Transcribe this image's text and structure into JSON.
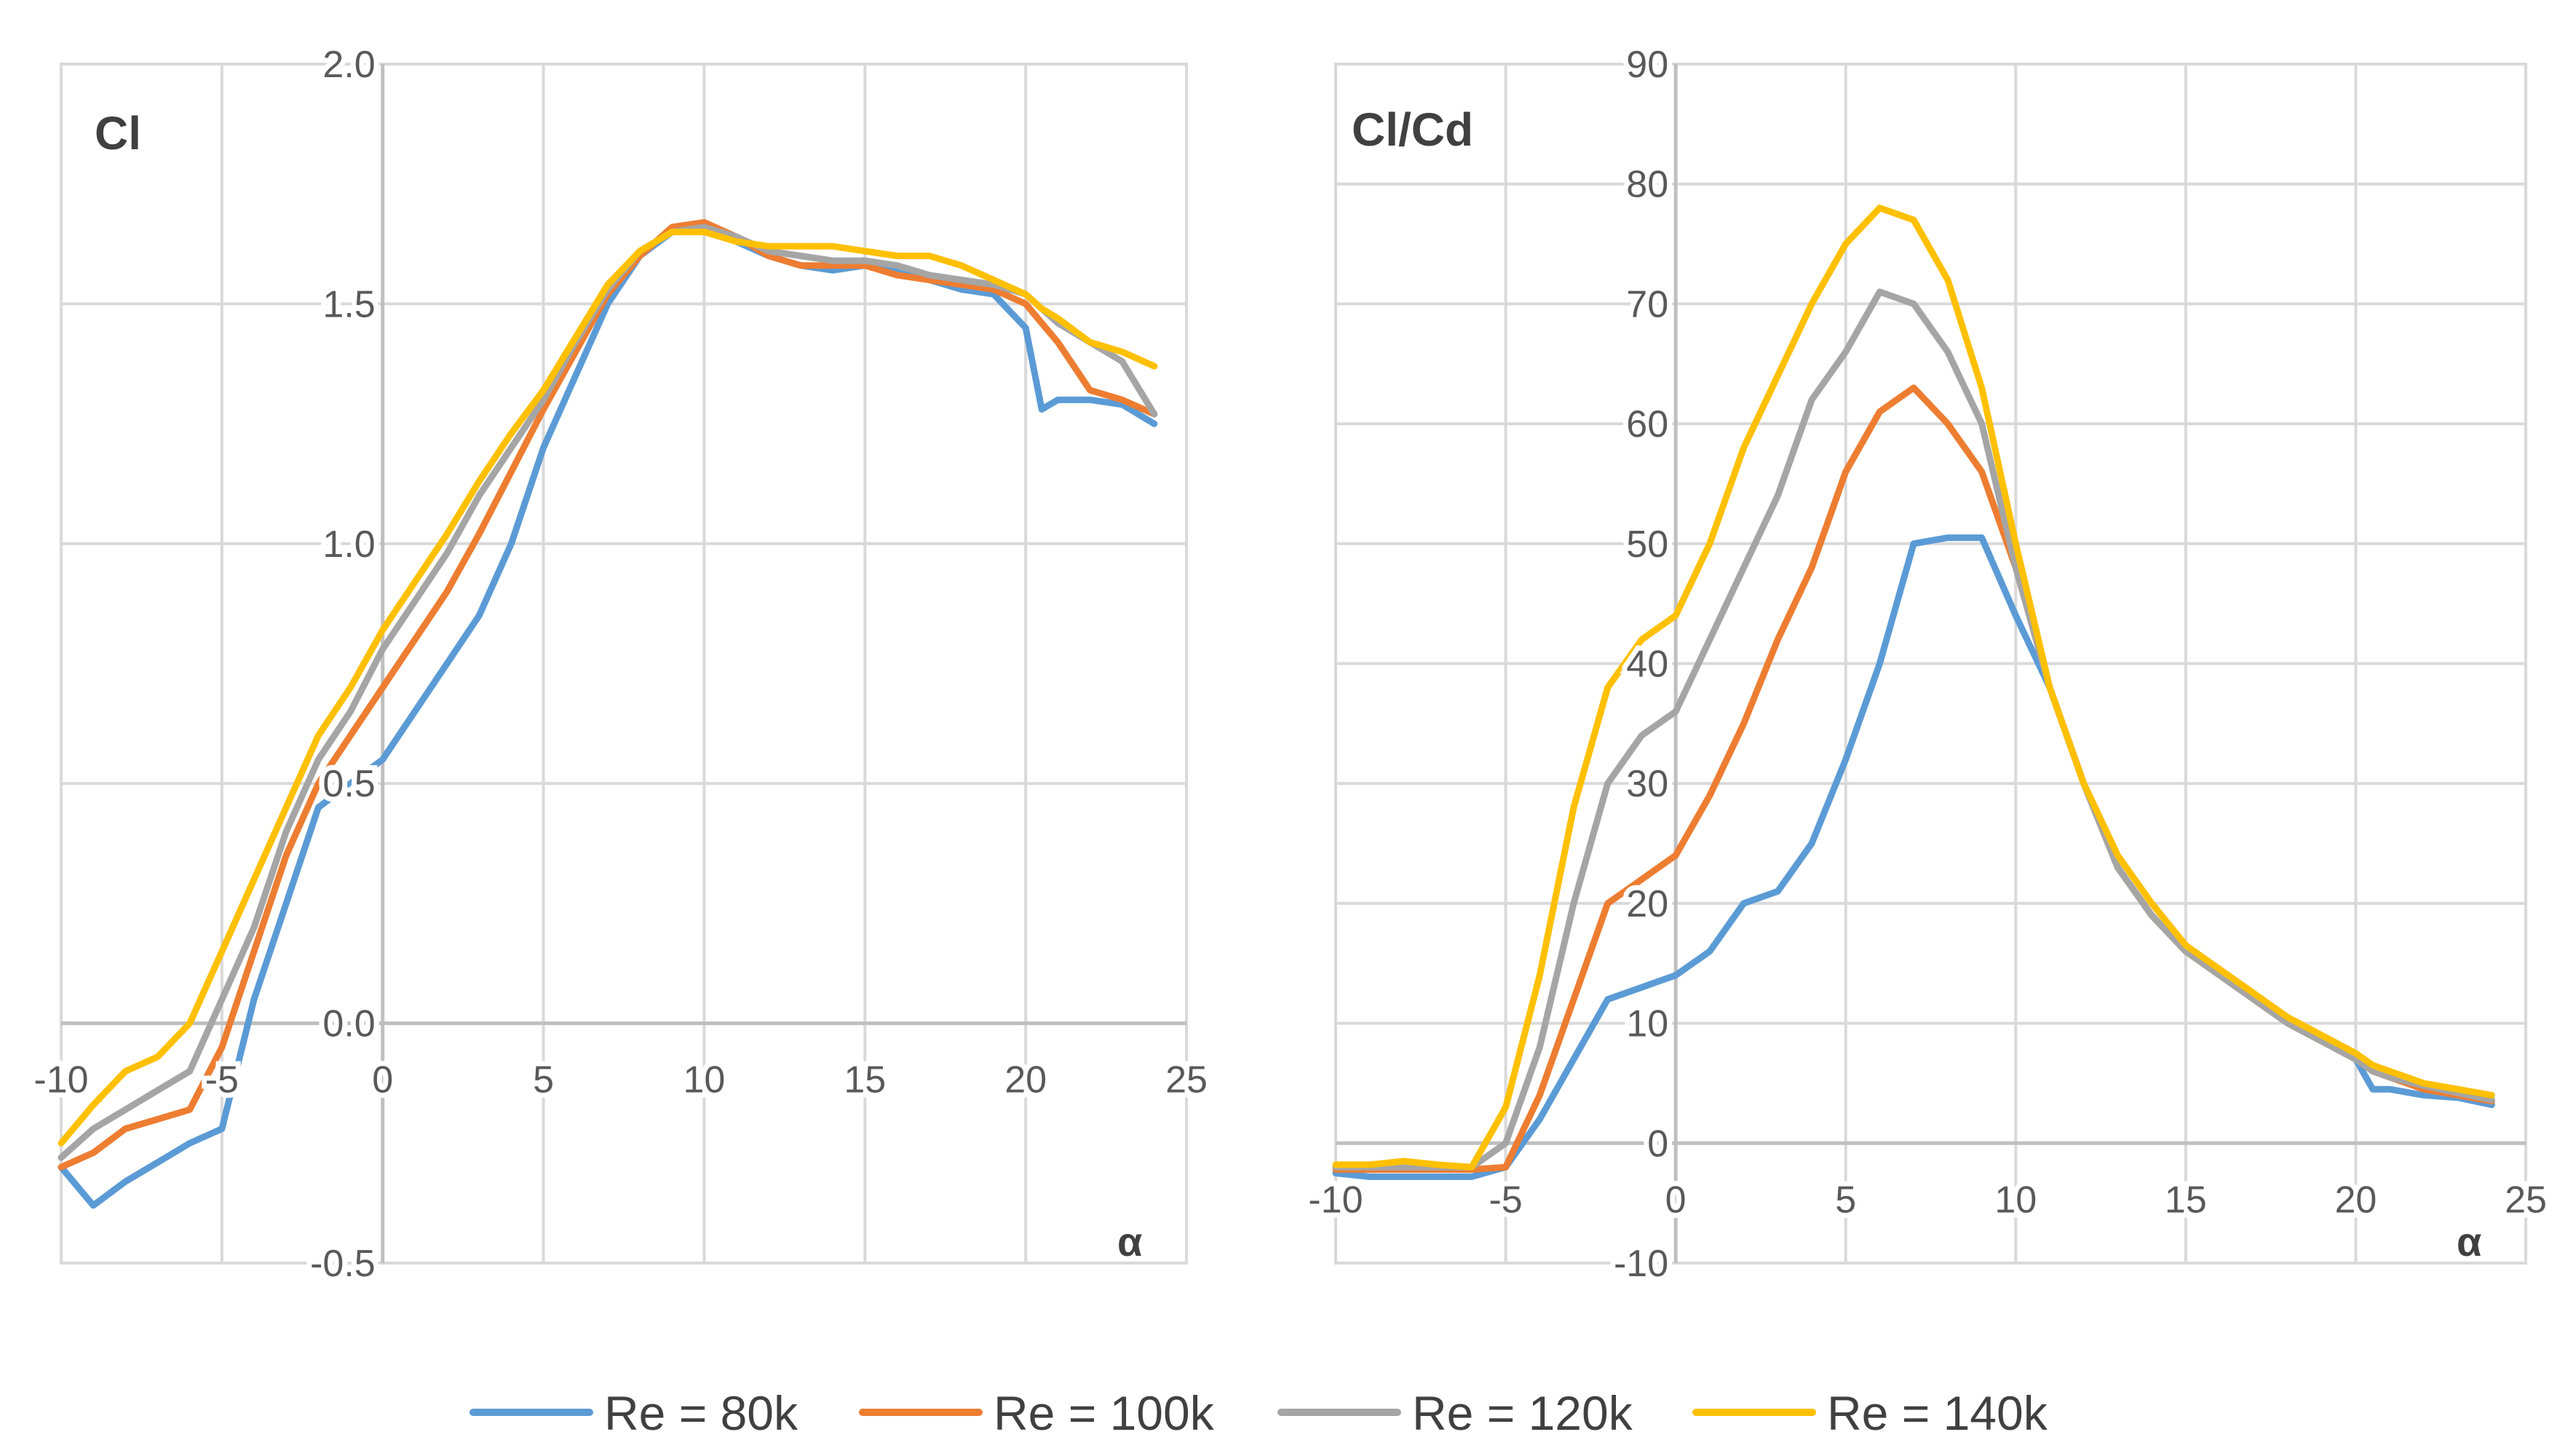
{
  "legend": [
    {
      "name": "Re = 80k",
      "color": "#5b9bd5"
    },
    {
      "name": "Re = 100k",
      "color": "#ed7d31"
    },
    {
      "name": "Re = 120k",
      "color": "#a5a5a5"
    },
    {
      "name": "Re = 140k",
      "color": "#ffc000"
    }
  ],
  "chart_data": [
    {
      "type": "line",
      "title": "",
      "ylabel": "Cl",
      "xlabel": "α",
      "xlim": [
        -10,
        25
      ],
      "ylim": [
        -0.5,
        2.0
      ],
      "xticks": [
        "-10",
        "-5",
        "0",
        "5",
        "10",
        "15",
        "20",
        "25"
      ],
      "yticks": [
        "-0.5",
        "0.0",
        "0.5",
        "1.0",
        "1.5",
        "2.0"
      ],
      "x": [
        -10,
        -9,
        -8,
        -7,
        -6,
        -5,
        -4,
        -3,
        -2,
        -1,
        0,
        1,
        2,
        3,
        4,
        5,
        6,
        7,
        8,
        9,
        10,
        11,
        12,
        13,
        14,
        15,
        16,
        17,
        18,
        19,
        20,
        20.5,
        21,
        22,
        23,
        24
      ],
      "series": [
        {
          "name": "Re = 80k",
          "color": "#5b9bd5",
          "values": [
            -0.3,
            -0.38,
            -0.33,
            -0.29,
            -0.25,
            -0.22,
            0.05,
            0.25,
            0.45,
            0.5,
            0.55,
            0.65,
            0.75,
            0.85,
            1.0,
            1.2,
            1.35,
            1.5,
            1.6,
            1.65,
            1.67,
            1.63,
            1.6,
            1.58,
            1.57,
            1.58,
            1.57,
            1.55,
            1.53,
            1.52,
            1.45,
            1.28,
            1.3,
            1.3,
            1.29,
            1.25
          ]
        },
        {
          "name": "Re = 100k",
          "color": "#ed7d31",
          "values": [
            -0.3,
            -0.27,
            -0.22,
            -0.2,
            -0.18,
            -0.05,
            0.15,
            0.35,
            0.5,
            0.6,
            0.7,
            0.8,
            0.9,
            1.02,
            1.15,
            1.28,
            1.4,
            1.52,
            1.6,
            1.66,
            1.67,
            1.64,
            1.6,
            1.58,
            1.58,
            1.58,
            1.56,
            1.55,
            1.54,
            1.53,
            1.5,
            1.46,
            1.42,
            1.32,
            1.3,
            1.27
          ]
        },
        {
          "name": "Re = 120k",
          "color": "#a5a5a5",
          "values": [
            -0.28,
            -0.22,
            -0.18,
            -0.14,
            -0.1,
            0.05,
            0.2,
            0.4,
            0.55,
            0.65,
            0.78,
            0.88,
            0.98,
            1.1,
            1.2,
            1.3,
            1.42,
            1.53,
            1.61,
            1.65,
            1.66,
            1.64,
            1.61,
            1.6,
            1.59,
            1.59,
            1.58,
            1.56,
            1.55,
            1.54,
            1.52,
            1.49,
            1.46,
            1.42,
            1.38,
            1.27
          ]
        },
        {
          "name": "Re = 140k",
          "color": "#ffc000",
          "values": [
            -0.25,
            -0.17,
            -0.1,
            -0.07,
            0.0,
            0.15,
            0.3,
            0.45,
            0.6,
            0.7,
            0.82,
            0.92,
            1.02,
            1.13,
            1.23,
            1.32,
            1.43,
            1.54,
            1.61,
            1.65,
            1.65,
            1.63,
            1.62,
            1.62,
            1.62,
            1.61,
            1.6,
            1.6,
            1.58,
            1.55,
            1.52,
            1.49,
            1.47,
            1.42,
            1.4,
            1.37
          ]
        }
      ]
    },
    {
      "type": "line",
      "title": "",
      "ylabel": "Cl/Cd",
      "xlabel": "α",
      "xlim": [
        -10,
        25
      ],
      "ylim": [
        -10,
        90
      ],
      "xticks": [
        "-10",
        "-5",
        "0",
        "5",
        "10",
        "15",
        "20",
        "25"
      ],
      "yticks": [
        "-10",
        "0",
        "10",
        "20",
        "30",
        "40",
        "50",
        "60",
        "70",
        "80",
        "90"
      ],
      "x": [
        -10,
        -9,
        -8,
        -7,
        -6,
        -5,
        -4,
        -3,
        -2,
        -1,
        0,
        1,
        2,
        3,
        4,
        5,
        6,
        7,
        8,
        9,
        10,
        11,
        12,
        13,
        14,
        15,
        16,
        17,
        18,
        19,
        20,
        20.5,
        21,
        22,
        23,
        24
      ],
      "series": [
        {
          "name": "Re = 80k",
          "color": "#5b9bd5",
          "values": [
            -2.5,
            -2.8,
            -2.8,
            -2.8,
            -2.8,
            -2,
            2,
            7,
            12,
            13,
            14,
            16,
            20,
            21,
            25,
            32,
            40,
            50,
            50.5,
            50.5,
            44,
            38,
            30,
            23,
            19,
            16,
            14,
            12,
            10,
            8.5,
            7,
            4.5,
            4.5,
            4,
            3.8,
            3.2
          ]
        },
        {
          "name": "Re = 100k",
          "color": "#ed7d31",
          "values": [
            -2.2,
            -2.2,
            -2.2,
            -2.2,
            -2.2,
            -2,
            4,
            12,
            20,
            22,
            24,
            29,
            35,
            42,
            48,
            56,
            61,
            63,
            60,
            56,
            48,
            38,
            30,
            23,
            19,
            16,
            14,
            12,
            10,
            8.5,
            7,
            6,
            5.5,
            4.5,
            4,
            3.5
          ]
        },
        {
          "name": "Re = 120k",
          "color": "#a5a5a5",
          "values": [
            -2,
            -2,
            -2,
            -2,
            -2,
            0,
            8,
            20,
            30,
            34,
            36,
            42,
            48,
            54,
            62,
            66,
            71,
            70,
            66,
            60,
            48,
            38,
            30,
            23,
            19,
            16,
            14,
            12,
            10,
            8.5,
            7,
            6,
            5.5,
            4.8,
            4.2,
            3.6
          ]
        },
        {
          "name": "Re = 140k",
          "color": "#ffc000",
          "values": [
            -1.8,
            -1.8,
            -1.5,
            -1.8,
            -2,
            3,
            14,
            28,
            38,
            42,
            44,
            50,
            58,
            64,
            70,
            75,
            78,
            77,
            72,
            63,
            50,
            38,
            30,
            24,
            20,
            16.5,
            14.5,
            12.5,
            10.5,
            9,
            7.5,
            6.5,
            6,
            5,
            4.5,
            4
          ]
        }
      ]
    }
  ]
}
